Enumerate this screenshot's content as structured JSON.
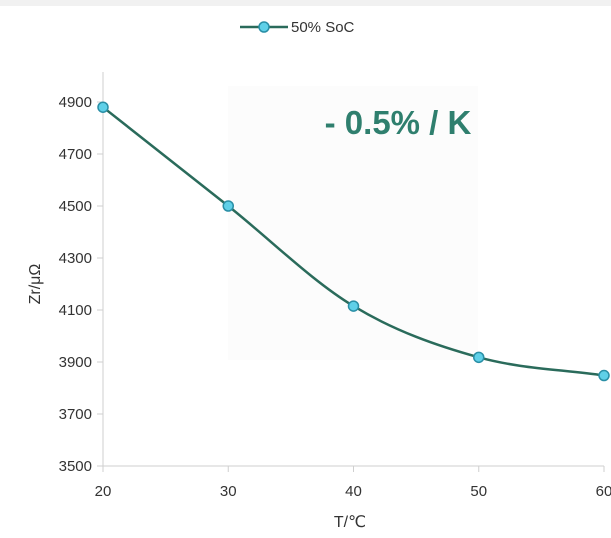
{
  "chart_data": {
    "type": "line",
    "x": [
      20,
      30,
      40,
      50,
      60
    ],
    "series": [
      {
        "name": "50% SoC",
        "values": [
          4880,
          4500,
          4115,
          3918,
          3848
        ]
      }
    ],
    "xlabel": "T/℃",
    "ylabel": "Zr/μΩ",
    "xlim": [
      20,
      60
    ],
    "ylim": [
      3500,
      4900
    ],
    "xticks": [
      "20",
      "30",
      "40",
      "50",
      "60"
    ],
    "yticks": [
      "3500",
      "3700",
      "3900",
      "4100",
      "4300",
      "4500",
      "4700",
      "4900"
    ],
    "legend_position": "top",
    "grid": false,
    "annotation": "- 0.5% / K",
    "colors": {
      "line": "#2a6b5b",
      "marker_fill": "#5fd0e8",
      "marker_stroke": "#2a8fa6",
      "annotation": "#2f7f6e"
    }
  }
}
